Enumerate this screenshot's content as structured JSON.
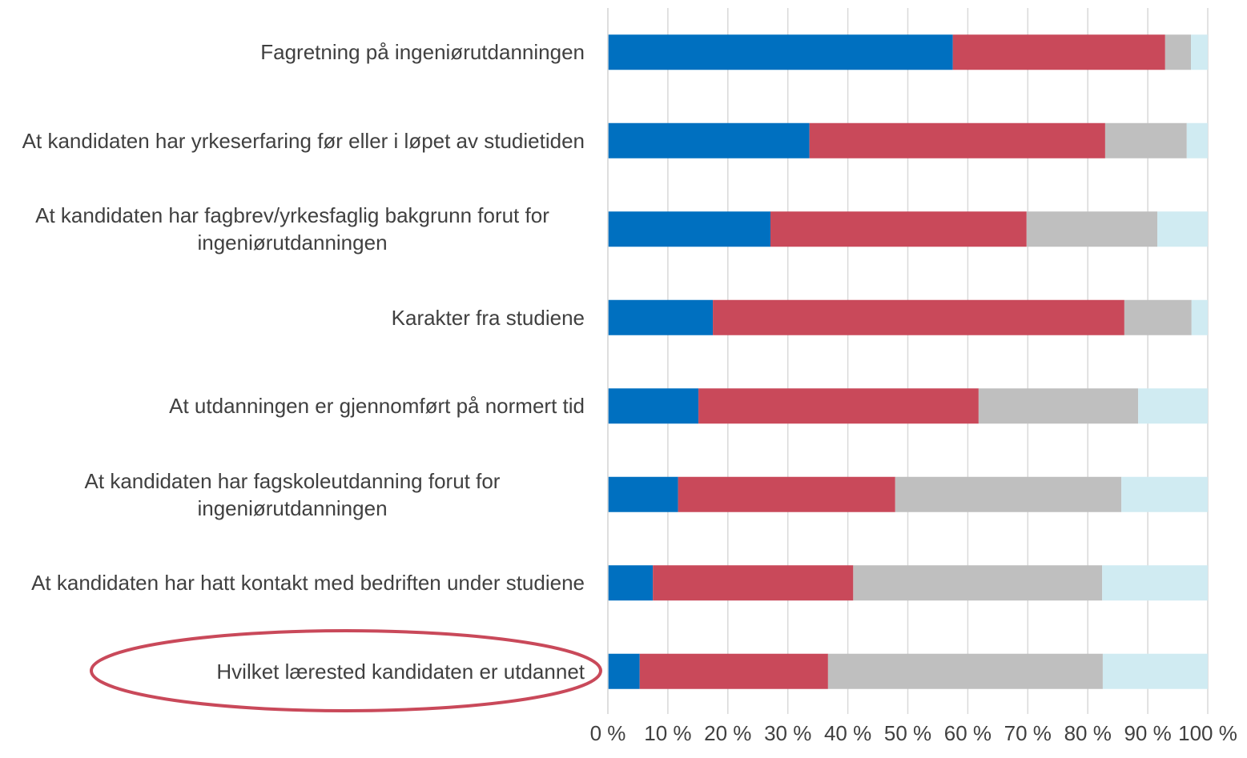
{
  "chart_data": {
    "type": "stacked-barh",
    "categories": [
      "Fagretning på ingeniørutdanningen",
      "At kandidaten har yrkeserfaring før eller i løpet av studietiden",
      "At kandidaten har fagbrev/yrkesfaglig bakgrunn forut for ingeniørutdanningen",
      "Karakter fra studiene",
      "At utdanningen er gjennomført på normert tid",
      "At kandidaten har fagskoleutdanning forut for ingeniørutdanningen",
      "At kandidaten har hatt kontakt med bedriften under studiene",
      "Hvilket lærested kandidaten er utdannet"
    ],
    "series": [
      {
        "color": "#0070c0",
        "values": [
          57.5,
          33.6,
          27.1,
          17.5,
          15.1,
          11.7,
          7.5,
          5.3
        ]
      },
      {
        "color": "#c9495a",
        "values": [
          35.4,
          49.3,
          42.7,
          68.6,
          46.7,
          36.2,
          33.4,
          31.4
        ]
      },
      {
        "color": "#bfbfbf",
        "values": [
          4.3,
          13.6,
          21.8,
          11.2,
          26.6,
          37.7,
          41.5,
          45.8
        ]
      },
      {
        "color": "#d0ebf2",
        "values": [
          2.8,
          3.5,
          8.4,
          2.7,
          11.6,
          14.4,
          17.6,
          17.5
        ]
      }
    ],
    "xlim": [
      0,
      100
    ],
    "xticks": [
      {
        "value": 0,
        "label": "0 %"
      },
      {
        "value": 10,
        "label": "10 %"
      },
      {
        "value": 20,
        "label": "20 %"
      },
      {
        "value": 30,
        "label": "30 %"
      },
      {
        "value": 40,
        "label": "40 %"
      },
      {
        "value": 50,
        "label": "50 %"
      },
      {
        "value": 60,
        "label": "60 %"
      },
      {
        "value": 70,
        "label": "70 %"
      },
      {
        "value": 80,
        "label": "80 %"
      },
      {
        "value": 90,
        "label": "90 %"
      },
      {
        "value": 100,
        "label": "100 %"
      }
    ],
    "grid": true
  }
}
